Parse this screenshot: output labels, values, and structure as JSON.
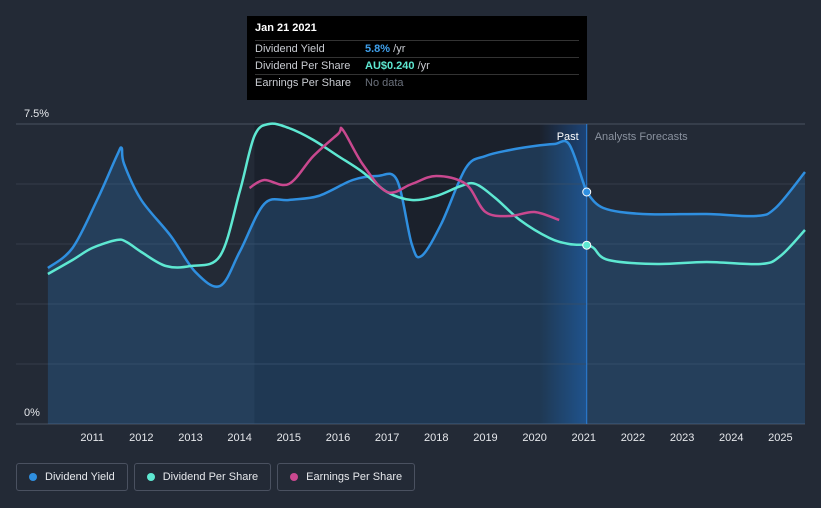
{
  "chart_data": {
    "type": "line",
    "title": "",
    "xlabel": "",
    "ylabel": "",
    "ylim": [
      0,
      7.5
    ],
    "y_axis_labels": [
      "7.5%",
      "0%"
    ],
    "x_ticks": [
      "2011",
      "2012",
      "2013",
      "2014",
      "2015",
      "2016",
      "2017",
      "2018",
      "2019",
      "2020",
      "2021",
      "2022",
      "2023",
      "2024",
      "2025"
    ],
    "past_label": "Past",
    "forecast_label": "Analysts Forecasts",
    "past_end_x": 2021.06,
    "series": [
      {
        "name": "Dividend Yield",
        "color": "#2f8fe0",
        "filled": true,
        "points": [
          [
            2010.1,
            3.9
          ],
          [
            2010.6,
            4.4
          ],
          [
            2011.1,
            5.6
          ],
          [
            2011.5,
            6.7
          ],
          [
            2011.6,
            6.9
          ],
          [
            2011.65,
            6.5
          ],
          [
            2012.0,
            5.6
          ],
          [
            2012.6,
            4.7
          ],
          [
            2013.1,
            3.8
          ],
          [
            2013.6,
            3.45
          ],
          [
            2014.0,
            4.3
          ],
          [
            2014.5,
            5.5
          ],
          [
            2015.0,
            5.6
          ],
          [
            2015.6,
            5.7
          ],
          [
            2016.3,
            6.1
          ],
          [
            2016.8,
            6.2
          ],
          [
            2017.2,
            6.1
          ],
          [
            2017.5,
            4.5
          ],
          [
            2017.7,
            4.2
          ],
          [
            2018.1,
            5.0
          ],
          [
            2018.6,
            6.4
          ],
          [
            2019.0,
            6.7
          ],
          [
            2019.5,
            6.85
          ],
          [
            2020.0,
            6.95
          ],
          [
            2020.4,
            7.0
          ],
          [
            2020.7,
            7.0
          ],
          [
            2021.0,
            6.0
          ],
          [
            2021.06,
            5.8
          ],
          [
            2021.4,
            5.4
          ],
          [
            2022.2,
            5.25
          ],
          [
            2023.5,
            5.25
          ],
          [
            2024.5,
            5.2
          ],
          [
            2024.9,
            5.4
          ],
          [
            2025.5,
            6.3
          ]
        ]
      },
      {
        "name": "Dividend Per Share",
        "color": "#5ee8d2",
        "filled": false,
        "points": [
          [
            2010.1,
            3.75
          ],
          [
            2010.6,
            4.1
          ],
          [
            2011.0,
            4.4
          ],
          [
            2011.5,
            4.6
          ],
          [
            2011.7,
            4.55
          ],
          [
            2012.0,
            4.3
          ],
          [
            2012.5,
            3.95
          ],
          [
            2013.0,
            3.95
          ],
          [
            2013.6,
            4.2
          ],
          [
            2014.0,
            5.8
          ],
          [
            2014.3,
            7.2
          ],
          [
            2014.6,
            7.5
          ],
          [
            2015.0,
            7.4
          ],
          [
            2015.5,
            7.1
          ],
          [
            2016.0,
            6.7
          ],
          [
            2016.5,
            6.3
          ],
          [
            2017.0,
            5.8
          ],
          [
            2017.5,
            5.6
          ],
          [
            2018.0,
            5.7
          ],
          [
            2018.5,
            5.95
          ],
          [
            2018.8,
            6.0
          ],
          [
            2019.2,
            5.65
          ],
          [
            2019.7,
            5.1
          ],
          [
            2020.3,
            4.65
          ],
          [
            2020.7,
            4.5
          ],
          [
            2021.06,
            4.47
          ],
          [
            2021.2,
            4.4
          ],
          [
            2021.5,
            4.1
          ],
          [
            2022.5,
            4.0
          ],
          [
            2023.5,
            4.05
          ],
          [
            2024.6,
            4.0
          ],
          [
            2025.0,
            4.2
          ],
          [
            2025.5,
            4.85
          ]
        ]
      },
      {
        "name": "Earnings Per Share",
        "color": "#c9488f",
        "filled": false,
        "points": [
          [
            2014.2,
            5.9
          ],
          [
            2014.5,
            6.1
          ],
          [
            2015.0,
            6.0
          ],
          [
            2015.5,
            6.7
          ],
          [
            2016.0,
            7.25
          ],
          [
            2016.1,
            7.35
          ],
          [
            2016.5,
            6.5
          ],
          [
            2017.0,
            5.8
          ],
          [
            2017.5,
            6.0
          ],
          [
            2018.0,
            6.2
          ],
          [
            2018.6,
            6.0
          ],
          [
            2019.0,
            5.3
          ],
          [
            2019.5,
            5.2
          ],
          [
            2020.0,
            5.3
          ],
          [
            2020.5,
            5.1
          ]
        ]
      }
    ],
    "tooltip": {
      "date": "Jan 21 2021",
      "rows": [
        {
          "label": "Dividend Yield",
          "value": "5.8%",
          "unit": " /yr"
        },
        {
          "label": "Dividend Per Share",
          "value": "AU$0.240",
          "unit": " /yr"
        },
        {
          "label": "Earnings Per Share",
          "value": "",
          "nodata": "No data"
        }
      ]
    },
    "legend": [
      {
        "label": "Dividend Yield",
        "color": "#2f8fe0"
      },
      {
        "label": "Dividend Per Share",
        "color": "#5ee8d2"
      },
      {
        "label": "Earnings Per Share",
        "color": "#c9488f"
      }
    ]
  }
}
